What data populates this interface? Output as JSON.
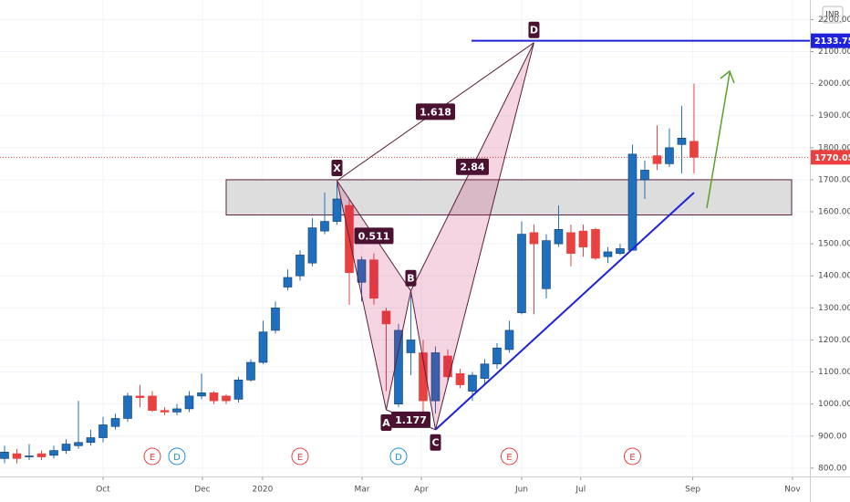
{
  "chart_data": {
    "type": "candlestick",
    "x": [
      0,
      1,
      2,
      3,
      4,
      5,
      6,
      7,
      8,
      9,
      10,
      11,
      12,
      13,
      14,
      15,
      16,
      17,
      18,
      19,
      20,
      21,
      22,
      23,
      24,
      25,
      26,
      27,
      28,
      29,
      30,
      31,
      32,
      33,
      34,
      35,
      36,
      37,
      38,
      39,
      40,
      41,
      42,
      43,
      44,
      45,
      46,
      47,
      48,
      49,
      50,
      51,
      52,
      53,
      54,
      55,
      56
    ],
    "open": [
      830,
      845,
      835,
      845,
      840,
      855,
      870,
      880,
      895,
      930,
      955,
      1025,
      1025,
      980,
      975,
      985,
      1025,
      1035,
      1025,
      1015,
      1075,
      1130,
      1230,
      1365,
      1400,
      1440,
      1540,
      1570,
      1620,
      1380,
      1450,
      1290,
      1000,
      1160,
      1160,
      1010,
      1150,
      1095,
      1040,
      1080,
      1125,
      1170,
      1285,
      1535,
      1360,
      1500,
      1535,
      1540,
      1545,
      1460,
      1470,
      1480,
      1700,
      1775,
      1750,
      1810,
      1820
    ],
    "high": [
      870,
      860,
      875,
      855,
      870,
      890,
      1010,
      920,
      960,
      970,
      1035,
      1060,
      1040,
      990,
      1000,
      1040,
      1095,
      1040,
      1030,
      1085,
      1140,
      1260,
      1320,
      1420,
      1480,
      1580,
      1660,
      1690,
      1640,
      1460,
      1470,
      1300,
      1250,
      1340,
      1200,
      1180,
      1170,
      1110,
      1100,
      1140,
      1190,
      1260,
      1570,
      1560,
      1530,
      1620,
      1560,
      1560,
      1550,
      1490,
      1500,
      1810,
      1760,
      1870,
      1860,
      1930,
      2000
    ],
    "low": [
      815,
      815,
      825,
      825,
      830,
      845,
      860,
      870,
      880,
      920,
      945,
      990,
      975,
      965,
      965,
      975,
      1015,
      1000,
      1000,
      1005,
      1070,
      1125,
      1220,
      1355,
      1385,
      1430,
      1530,
      1560,
      1310,
      1320,
      1310,
      1040,
      990,
      1090,
      960,
      970,
      1070,
      1050,
      1010,
      1060,
      1110,
      1160,
      1280,
      1280,
      1330,
      1490,
      1430,
      1460,
      1450,
      1440,
      1465,
      1480,
      1640,
      1730,
      1740,
      1720,
      1720
    ],
    "close": [
      850,
      830,
      838,
      835,
      855,
      875,
      880,
      895,
      935,
      955,
      1025,
      1020,
      980,
      975,
      985,
      1025,
      1035,
      1010,
      1010,
      1075,
      1130,
      1225,
      1300,
      1395,
      1465,
      1550,
      1570,
      1640,
      1410,
      1450,
      1330,
      1250,
      1230,
      1200,
      1010,
      1160,
      1085,
      1060,
      1090,
      1125,
      1175,
      1230,
      1530,
      1500,
      1510,
      1545,
      1470,
      1490,
      1455,
      1475,
      1485,
      1780,
      1730,
      1750,
      1800,
      1830,
      1770
    ],
    "up_color": "#1f6fbf",
    "down_color": "#e8413f",
    "xlim": [
      -0.37,
      65.41
    ],
    "ylim": [
      774,
      2261
    ],
    "xticks": [
      {
        "value": 8,
        "label": "Oct"
      },
      {
        "value": 16.07,
        "label": "Dec"
      },
      {
        "value": 20.96,
        "label": "2020"
      },
      {
        "value": 29.04,
        "label": "Mar"
      },
      {
        "value": 33.85,
        "label": "Apr"
      },
      {
        "value": 42,
        "label": "Jun"
      },
      {
        "value": 46.8,
        "label": "Jul"
      },
      {
        "value": 55.9,
        "label": "Sep"
      },
      {
        "value": 64,
        "label": "Nov"
      }
    ],
    "yticks": [
      {
        "value": 800,
        "label": "800.00"
      },
      {
        "value": 900,
        "label": "900.00"
      },
      {
        "value": 1000,
        "label": "1000.00"
      },
      {
        "value": 1100,
        "label": "1100.00"
      },
      {
        "value": 1200,
        "label": "1200.00"
      },
      {
        "value": 1300,
        "label": "1300.00"
      },
      {
        "value": 1400,
        "label": "1400.00"
      },
      {
        "value": 1500,
        "label": "1500.00"
      },
      {
        "value": 1600,
        "label": "1600.00"
      },
      {
        "value": 1700,
        "label": "1700.00"
      },
      {
        "value": 1800,
        "label": "1800.00"
      },
      {
        "value": 1900,
        "label": "1900.00"
      },
      {
        "value": 2000,
        "label": "2000.00"
      },
      {
        "value": 2100,
        "label": "2100.00"
      },
      {
        "value": 2200,
        "label": "2200.00"
      }
    ],
    "grid": true,
    "currency": "INR",
    "price_labels": [
      {
        "value": 2133.75,
        "label": "2133.75",
        "color": "#1e22d8"
      },
      {
        "value": 1770.05,
        "label": "1770.05",
        "color": "#e8413f"
      }
    ],
    "pattern": [
      {
        "label": "X",
        "x": 27,
        "y": 1697
      },
      {
        "label": "A",
        "x": 31,
        "y": 982
      },
      {
        "label": "B",
        "x": 33,
        "y": 1353
      },
      {
        "label": "C",
        "x": 35,
        "y": 920
      },
      {
        "label": "D",
        "x": 43,
        "y": 2128
      }
    ],
    "ratios": [
      {
        "label": "1.618",
        "from": 0,
        "to": 4
      },
      {
        "label": "0.511",
        "from": 0,
        "to": 2
      },
      {
        "label": "2.84",
        "from": 2,
        "to": 4
      },
      {
        "label": "1.177",
        "from": 1,
        "to": 3
      }
    ],
    "zone": [
      1590,
      1700
    ],
    "trendline": {
      "x": [
        35,
        56
      ],
      "y": [
        920,
        1660
      ]
    },
    "events": [
      {
        "label": "E",
        "x": 12,
        "color": "#e8413f"
      },
      {
        "label": "D",
        "x": 14,
        "color": "#1f8fd8"
      },
      {
        "label": "E",
        "x": 24,
        "color": "#e8413f"
      },
      {
        "label": "D",
        "x": 32,
        "color": "#1f8fd8"
      },
      {
        "label": "E",
        "x": 41,
        "color": "#e8413f"
      },
      {
        "label": "E",
        "x": 51,
        "color": "#e8413f"
      }
    ]
  }
}
